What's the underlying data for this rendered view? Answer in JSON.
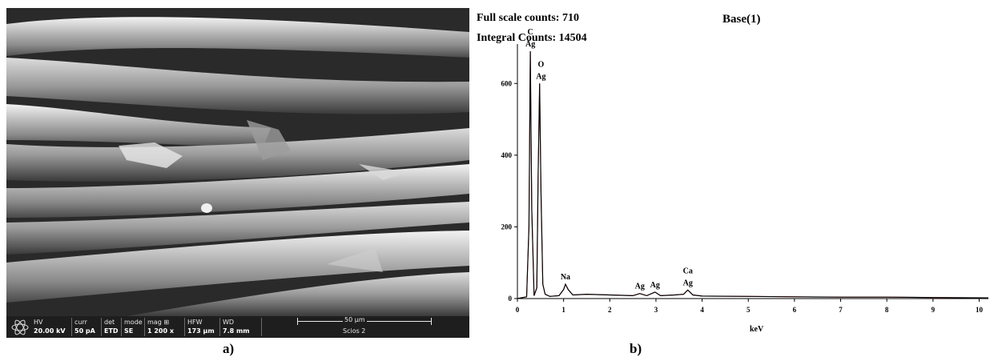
{
  "panel_a": {
    "label": "a)",
    "databar": {
      "hv_label": "HV",
      "hv_value": "20.00 kV",
      "curr_label": "curr",
      "curr_value": "50 pA",
      "det_label": "det",
      "det_value": "ETD",
      "mode_label": "mode",
      "mode_value": "SE",
      "mag_label": "mag ⊞",
      "mag_value": "1 200 x",
      "hfw_label": "HFW",
      "hfw_value": "173 µm",
      "wd_label": "WD",
      "wd_value": "7.8 mm",
      "scale_bar": "50 µm",
      "instrument": "Scios 2"
    }
  },
  "panel_b": {
    "label": "b)",
    "full_scale_counts": "Full scale counts: 710",
    "integral_counts": "Integral Counts: 14504",
    "spectrum_title": "Base(1)"
  },
  "chart_data": {
    "type": "line",
    "title": "Base(1)",
    "xlabel": "keV",
    "ylabel": "",
    "xlim": [
      0,
      10.2
    ],
    "ylim": [
      0,
      710
    ],
    "x_ticks": [
      0,
      1,
      2,
      3,
      4,
      5,
      6,
      7,
      8,
      9,
      10
    ],
    "y_ticks": [
      0,
      200,
      400,
      600
    ],
    "series": [
      {
        "x": [
          0.0,
          0.2,
          0.25,
          0.28,
          0.31,
          0.36,
          0.42,
          0.45,
          0.48,
          0.51,
          0.55,
          0.6,
          0.7,
          0.9,
          1.0,
          1.04,
          1.1,
          1.2,
          1.5,
          2.0,
          2.5,
          2.65,
          2.8,
          2.98,
          3.1,
          3.4,
          3.6,
          3.69,
          3.8,
          4.0,
          5.0,
          6.0,
          7.0,
          8.0,
          9.0,
          10.2
        ],
        "y": [
          0,
          5,
          200,
          690,
          250,
          8,
          30,
          350,
          600,
          300,
          40,
          12,
          6,
          8,
          25,
          40,
          25,
          10,
          12,
          10,
          8,
          14,
          8,
          18,
          8,
          10,
          12,
          24,
          10,
          7,
          6,
          5,
          4,
          4,
          3,
          2
        ]
      }
    ],
    "annotations": [
      {
        "x": 0.28,
        "y": 690,
        "labels": [
          "C",
          "Ag"
        ]
      },
      {
        "x": 0.51,
        "y": 600,
        "labels": [
          "O",
          "Ag"
        ]
      },
      {
        "x": 1.04,
        "y": 40,
        "labels": [
          "Na"
        ]
      },
      {
        "x": 2.65,
        "y": 14,
        "labels": [
          "Ag"
        ]
      },
      {
        "x": 2.98,
        "y": 18,
        "labels": [
          "Ag"
        ]
      },
      {
        "x": 3.69,
        "y": 24,
        "labels": [
          "Ca",
          "Ag"
        ]
      }
    ],
    "grid": false,
    "colors": {
      "line": "#000000",
      "peak_fill": "#d8232a"
    }
  }
}
